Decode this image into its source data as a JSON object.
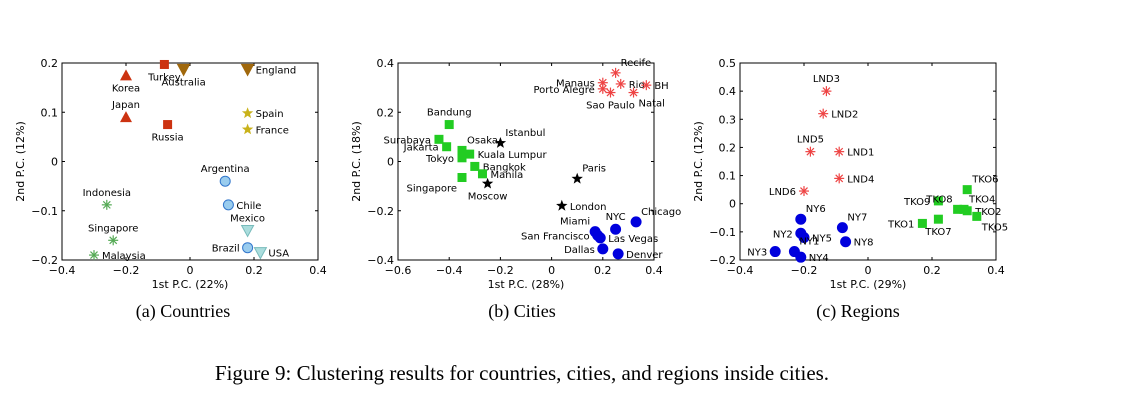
{
  "figure_caption": "Figure 9: Clustering results for countries, cities, and regions inside cities.",
  "chart_data": [
    {
      "type": "scatter",
      "subcaption": "(a)  Countries",
      "xlabel": "1st P.C. (22%)",
      "ylabel": "2nd P.C. (12%)",
      "xlim": [
        -0.4,
        0.4
      ],
      "ylim": [
        -0.2,
        0.2
      ],
      "xticks": [
        "−0.4",
        "−0.2",
        "0",
        "0.2",
        "0.4"
      ],
      "yticks": [
        "−0.2",
        "−0.1",
        "0",
        "0.1",
        "0.2"
      ],
      "xtick_values": [
        -0.4,
        -0.2,
        0,
        0.2,
        0.4
      ],
      "ytick_values": [
        -0.2,
        -0.1,
        0,
        0.1,
        0.2
      ],
      "points": [
        {
          "label": "Korea",
          "x": -0.2,
          "y": 0.175,
          "marker": "triangle-up",
          "color": "#cc3311",
          "label_pos": "below"
        },
        {
          "label": "Turkey",
          "x": -0.08,
          "y": 0.197,
          "marker": "square",
          "color": "#cc3311",
          "label_pos": "below"
        },
        {
          "label": "Australia",
          "x": -0.02,
          "y": 0.187,
          "marker": "triangle-down",
          "color": "#a0680c",
          "label_pos": "below"
        },
        {
          "label": "England",
          "x": 0.18,
          "y": 0.187,
          "marker": "triangle-down",
          "color": "#a0680c",
          "label_pos": "right"
        },
        {
          "label": "Japan",
          "x": -0.2,
          "y": 0.09,
          "marker": "triangle-up",
          "color": "#cc3311",
          "label_pos": "above"
        },
        {
          "label": "Russia",
          "x": -0.07,
          "y": 0.075,
          "marker": "square",
          "color": "#cc3311",
          "label_pos": "below"
        },
        {
          "label": "Spain",
          "x": 0.18,
          "y": 0.098,
          "marker": "star",
          "color": "#c9b21a",
          "label_pos": "right"
        },
        {
          "label": "France",
          "x": 0.18,
          "y": 0.065,
          "marker": "star",
          "color": "#c9b21a",
          "label_pos": "right"
        },
        {
          "label": "Argentina",
          "x": 0.11,
          "y": -0.04,
          "marker": "circle",
          "color": "#99ccee",
          "label_pos": "above"
        },
        {
          "label": "Chile",
          "x": 0.12,
          "y": -0.088,
          "marker": "circle",
          "color": "#99ccee",
          "label_pos": "right"
        },
        {
          "label": "Mexico",
          "x": 0.18,
          "y": -0.14,
          "marker": "triangle-down",
          "color": "#aadddd",
          "label_pos": "above"
        },
        {
          "label": "Brazil",
          "x": 0.18,
          "y": -0.175,
          "marker": "circle",
          "color": "#99ccee",
          "label_pos": "left"
        },
        {
          "label": "USA",
          "x": 0.22,
          "y": -0.185,
          "marker": "triangle-down",
          "color": "#aadddd",
          "label_pos": "right"
        },
        {
          "label": "Indonesia",
          "x": -0.26,
          "y": -0.088,
          "marker": "asterisk",
          "color": "#55aa55",
          "label_pos": "above"
        },
        {
          "label": "Singapore",
          "x": -0.24,
          "y": -0.16,
          "marker": "asterisk",
          "color": "#55aa55",
          "label_pos": "above"
        },
        {
          "label": "Malaysia",
          "x": -0.3,
          "y": -0.19,
          "marker": "asterisk",
          "color": "#55aa55",
          "label_pos": "right"
        }
      ]
    },
    {
      "type": "scatter",
      "subcaption": "(b)  Cities",
      "xlabel": "1st P.C. (28%)",
      "ylabel": "2nd P.C. (18%)",
      "xlim": [
        -0.6,
        0.4
      ],
      "ylim": [
        -0.4,
        0.4
      ],
      "xticks": [
        "−0.6",
        "−0.4",
        "−0.2",
        "0",
        "0.2",
        "0.4"
      ],
      "yticks": [
        "−0.4",
        "−0.2",
        "0",
        "0.2",
        "0.4"
      ],
      "xtick_values": [
        -0.6,
        -0.4,
        -0.2,
        0,
        0.2,
        0.4
      ],
      "ytick_values": [
        -0.4,
        -0.2,
        0,
        0.2,
        0.4
      ],
      "points": [
        {
          "label": "Recife",
          "x": 0.25,
          "y": 0.36,
          "marker": "asterisk",
          "color": "#ee4444",
          "label_pos": "above-right"
        },
        {
          "label": "Manaus",
          "x": 0.2,
          "y": 0.32,
          "marker": "asterisk",
          "color": "#ee4444",
          "label_pos": "left"
        },
        {
          "label": "Rio",
          "x": 0.27,
          "y": 0.315,
          "marker": "asterisk",
          "color": "#ee4444",
          "label_pos": "right"
        },
        {
          "label": "BH",
          "x": 0.37,
          "y": 0.31,
          "marker": "asterisk",
          "color": "#ee4444",
          "label_pos": "right"
        },
        {
          "label": "Porto Alegre",
          "x": 0.2,
          "y": 0.295,
          "marker": "asterisk",
          "color": "#ee4444",
          "label_pos": "left"
        },
        {
          "label": "Sao Paulo",
          "x": 0.23,
          "y": 0.28,
          "marker": "asterisk",
          "color": "#ee4444",
          "label_pos": "below"
        },
        {
          "label": "Natal",
          "x": 0.32,
          "y": 0.28,
          "marker": "asterisk",
          "color": "#ee4444",
          "label_pos": "below-right"
        },
        {
          "label": "Bandung",
          "x": -0.4,
          "y": 0.15,
          "marker": "square",
          "color": "#22cc22",
          "label_pos": "above"
        },
        {
          "label": "Surabaya",
          "x": -0.44,
          "y": 0.09,
          "marker": "square",
          "color": "#22cc22",
          "label_pos": "left"
        },
        {
          "label": "Jakarta",
          "x": -0.41,
          "y": 0.06,
          "marker": "square",
          "color": "#22cc22",
          "label_pos": "left"
        },
        {
          "label": "Osaka",
          "x": -0.35,
          "y": 0.045,
          "marker": "square",
          "color": "#22cc22",
          "label_pos": "above-right"
        },
        {
          "label": "Tokyo",
          "x": -0.35,
          "y": 0.015,
          "marker": "square",
          "color": "#22cc22",
          "label_pos": "left"
        },
        {
          "label": "Kuala Lumpur",
          "x": -0.32,
          "y": 0.03,
          "marker": "square",
          "color": "#22cc22",
          "label_pos": "right"
        },
        {
          "label": "Bangkok",
          "x": -0.3,
          "y": -0.02,
          "marker": "square",
          "color": "#22cc22",
          "label_pos": "right"
        },
        {
          "label": "Manila",
          "x": -0.27,
          "y": -0.05,
          "marker": "square",
          "color": "#22cc22",
          "label_pos": "right"
        },
        {
          "label": "Singapore",
          "x": -0.35,
          "y": -0.065,
          "marker": "square",
          "color": "#22cc22",
          "label_pos": "below-left"
        },
        {
          "label": "Istanbul",
          "x": -0.2,
          "y": 0.075,
          "marker": "star",
          "color": "#000000",
          "label_pos": "above-right"
        },
        {
          "label": "Moscow",
          "x": -0.25,
          "y": -0.09,
          "marker": "star",
          "color": "#000000",
          "label_pos": "below"
        },
        {
          "label": "Paris",
          "x": 0.1,
          "y": -0.07,
          "marker": "star",
          "color": "#000000",
          "label_pos": "above-right"
        },
        {
          "label": "London",
          "x": 0.04,
          "y": -0.18,
          "marker": "star",
          "color": "#000000",
          "label_pos": "right"
        },
        {
          "label": "NYC",
          "x": 0.25,
          "y": -0.275,
          "marker": "circle",
          "color": "#0000dd",
          "label_pos": "above"
        },
        {
          "label": "Chicago",
          "x": 0.33,
          "y": -0.245,
          "marker": "circle",
          "color": "#0000dd",
          "label_pos": "above-right"
        },
        {
          "label": "Miami",
          "x": 0.17,
          "y": -0.285,
          "marker": "circle",
          "color": "#0000dd",
          "label_pos": "above-left"
        },
        {
          "label": "San Francisco",
          "x": 0.18,
          "y": -0.3,
          "marker": "circle",
          "color": "#0000dd",
          "label_pos": "left"
        },
        {
          "label": "Las Vegas",
          "x": 0.19,
          "y": -0.31,
          "marker": "circle",
          "color": "#0000dd",
          "label_pos": "right"
        },
        {
          "label": "Dallas",
          "x": 0.2,
          "y": -0.355,
          "marker": "circle",
          "color": "#0000dd",
          "label_pos": "left"
        },
        {
          "label": "Denver",
          "x": 0.26,
          "y": -0.375,
          "marker": "circle",
          "color": "#0000dd",
          "label_pos": "right"
        }
      ]
    },
    {
      "type": "scatter",
      "subcaption": "(c)  Regions",
      "xlabel": "1st P.C. (29%)",
      "ylabel": "2nd P.C. (12%)",
      "xlim": [
        -0.4,
        0.4
      ],
      "ylim": [
        -0.2,
        0.5
      ],
      "xticks": [
        "−0.4",
        "−0.2",
        "0",
        "0.2",
        "0.4"
      ],
      "yticks": [
        "−0.2",
        "−0.1",
        "0",
        "0.1",
        "0.2",
        "0.3",
        "0.4",
        "0.5"
      ],
      "xtick_values": [
        -0.4,
        -0.2,
        0,
        0.2,
        0.4
      ],
      "ytick_values": [
        -0.2,
        -0.1,
        0,
        0.1,
        0.2,
        0.3,
        0.4,
        0.5
      ],
      "points": [
        {
          "label": "LND3",
          "x": -0.13,
          "y": 0.4,
          "marker": "asterisk",
          "color": "#ee4444",
          "label_pos": "above"
        },
        {
          "label": "LND2",
          "x": -0.14,
          "y": 0.32,
          "marker": "asterisk",
          "color": "#ee4444",
          "label_pos": "right"
        },
        {
          "label": "LND5",
          "x": -0.18,
          "y": 0.185,
          "marker": "asterisk",
          "color": "#ee4444",
          "label_pos": "above"
        },
        {
          "label": "LND1",
          "x": -0.09,
          "y": 0.185,
          "marker": "asterisk",
          "color": "#ee4444",
          "label_pos": "right"
        },
        {
          "label": "LND4",
          "x": -0.09,
          "y": 0.09,
          "marker": "asterisk",
          "color": "#ee4444",
          "label_pos": "right"
        },
        {
          "label": "LND6",
          "x": -0.2,
          "y": 0.045,
          "marker": "asterisk",
          "color": "#ee4444",
          "label_pos": "left"
        },
        {
          "label": "NY6",
          "x": -0.21,
          "y": -0.055,
          "marker": "circle",
          "color": "#0000dd",
          "label_pos": "above-right"
        },
        {
          "label": "NY7",
          "x": -0.08,
          "y": -0.085,
          "marker": "circle",
          "color": "#0000dd",
          "label_pos": "above-right"
        },
        {
          "label": "NY2",
          "x": -0.21,
          "y": -0.105,
          "marker": "circle",
          "color": "#0000dd",
          "label_pos": "left"
        },
        {
          "label": "NY5",
          "x": -0.2,
          "y": -0.12,
          "marker": "circle",
          "color": "#0000dd",
          "label_pos": "right"
        },
        {
          "label": "NY8",
          "x": -0.07,
          "y": -0.135,
          "marker": "circle",
          "color": "#0000dd",
          "label_pos": "right"
        },
        {
          "label": "NY1",
          "x": -0.23,
          "y": -0.17,
          "marker": "circle",
          "color": "#0000dd",
          "label_pos": "above-right"
        },
        {
          "label": "NY3",
          "x": -0.29,
          "y": -0.17,
          "marker": "circle",
          "color": "#0000dd",
          "label_pos": "left"
        },
        {
          "label": "NY4",
          "x": -0.21,
          "y": -0.19,
          "marker": "circle",
          "color": "#0000dd",
          "label_pos": "right"
        },
        {
          "label": "TKO6",
          "x": 0.31,
          "y": 0.05,
          "marker": "square",
          "color": "#22cc22",
          "label_pos": "above-right"
        },
        {
          "label": "TKO9",
          "x": 0.22,
          "y": 0.01,
          "marker": "square",
          "color": "#22cc22",
          "label_pos": "left"
        },
        {
          "label": "TKO8",
          "x": 0.28,
          "y": -0.02,
          "marker": "square",
          "color": "#22cc22",
          "label_pos": "above-left"
        },
        {
          "label": "TKO4",
          "x": 0.3,
          "y": -0.02,
          "marker": "square",
          "color": "#22cc22",
          "label_pos": "above-right"
        },
        {
          "label": "TKO2",
          "x": 0.31,
          "y": -0.025,
          "marker": "square",
          "color": "#22cc22",
          "label_pos": "right"
        },
        {
          "label": "TKO1",
          "x": 0.17,
          "y": -0.07,
          "marker": "square",
          "color": "#22cc22",
          "label_pos": "left"
        },
        {
          "label": "TKO7",
          "x": 0.22,
          "y": -0.055,
          "marker": "square",
          "color": "#22cc22",
          "label_pos": "below"
        },
        {
          "label": "TKO5",
          "x": 0.34,
          "y": -0.045,
          "marker": "square",
          "color": "#22cc22",
          "label_pos": "below-right"
        }
      ]
    }
  ]
}
